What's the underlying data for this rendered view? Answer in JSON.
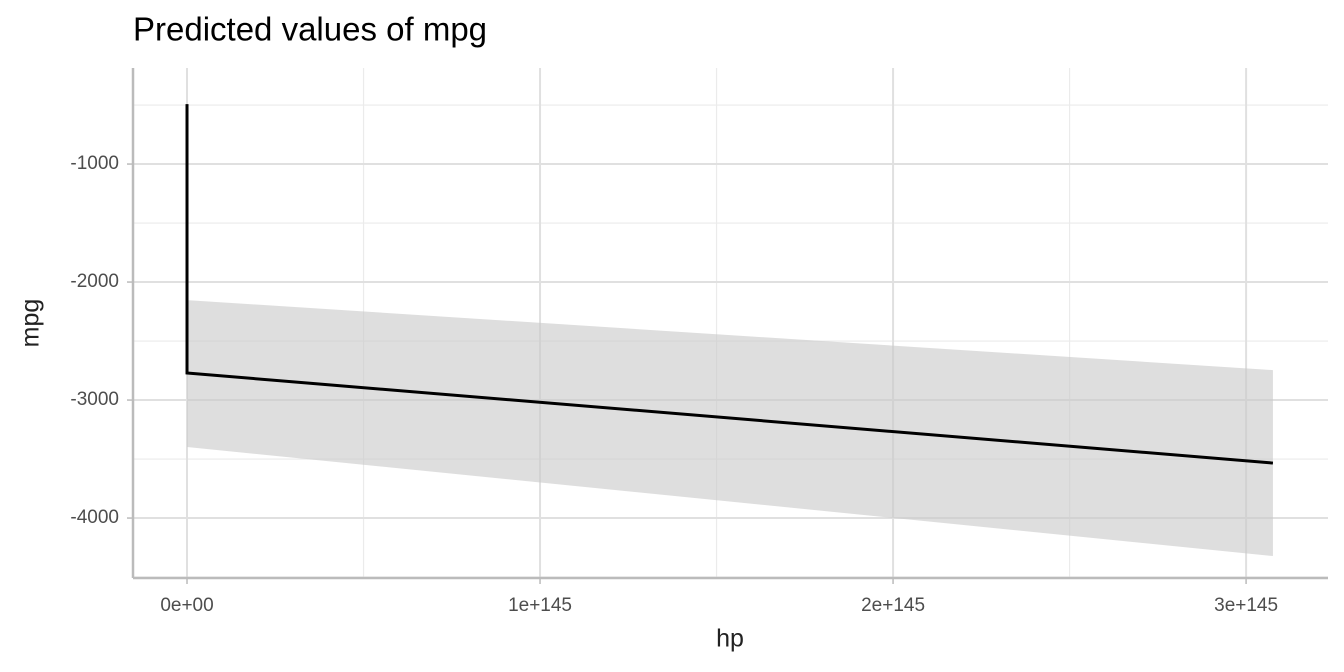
{
  "chart_data": {
    "type": "line",
    "title": "Predicted values of mpg",
    "xlabel": "hp",
    "ylabel": "mpg",
    "xlim": [
      -1.53e+144,
      3.232e+145
    ],
    "ylim": [
      -4508,
      -186
    ],
    "xticks": [
      {
        "value": 0,
        "label": "0e+00"
      },
      {
        "value": 1e+145,
        "label": "1e+145"
      },
      {
        "value": 2e+145,
        "label": "2e+145"
      },
      {
        "value": 3e+145,
        "label": "3e+145"
      }
    ],
    "yticks": [
      -4000,
      -3000,
      -2000,
      -1000
    ],
    "x_minor_ticks": [
      5e+144,
      1.5e+145,
      2.5e+145
    ],
    "y_minor_ticks": [
      -4500,
      -3500,
      -2500,
      -1500,
      -500
    ],
    "grid": true,
    "series": [
      {
        "color": "#000000",
        "x": [
          0,
          0,
          3.076e+145
        ],
        "y": [
          -492,
          -2771,
          -3534
        ]
      }
    ],
    "ribbon": {
      "color": "#c8c8c8",
      "x": [
        0,
        3.076e+145
      ],
      "lower": [
        -3398,
        -4322
      ],
      "upper": [
        -2153,
        -2746
      ]
    }
  }
}
